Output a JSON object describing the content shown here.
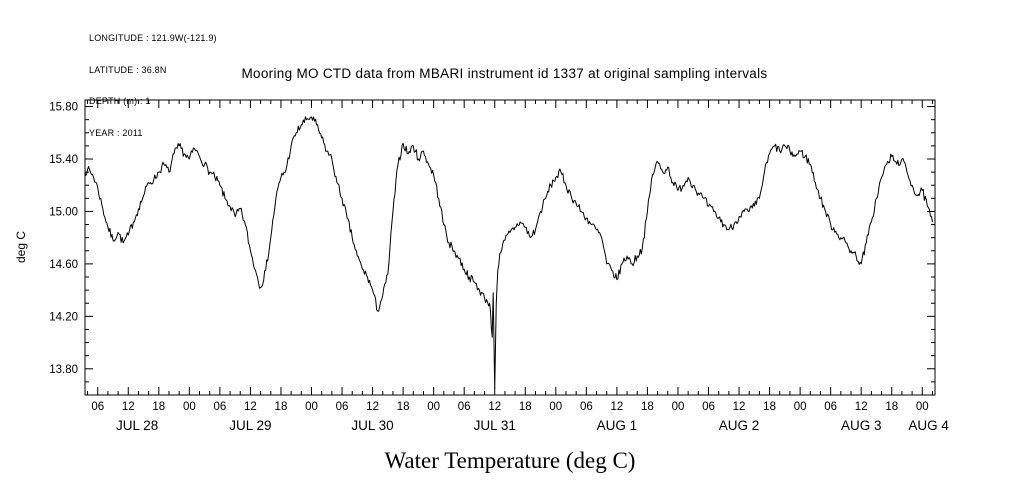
{
  "meta": {
    "longitude": "LONGITUDE : 121.9W(-121.9)",
    "latitude": "LATITUDE : 36.8N",
    "depth": "DEPTH (m) : 1",
    "year": "YEAR : 2011"
  },
  "title": "Mooring MO CTD data from MBARI instrument id 1337 at original sampling intervals",
  "chart_data": {
    "type": "line",
    "title": "Mooring MO CTD data from MBARI instrument id 1337 at original sampling intervals",
    "xlabel": "Water Temperature (deg C)",
    "ylabel": "deg C",
    "x_unit": "hours since 2011-07-28 00:00",
    "xlim": [
      3.5,
      170.5
    ],
    "ylim": [
      13.6,
      15.85
    ],
    "grid": false,
    "line_color": "#000000",
    "noise_amp": 0.032,
    "noise_seed": 7,
    "y_major_ticks": [
      13.8,
      14.2,
      14.6,
      15.0,
      15.4,
      15.8
    ],
    "y_tick_labels": [
      "13.80",
      "14.20",
      "14.60",
      "15.00",
      "15.40",
      "15.80"
    ],
    "y_minor_step": 0.1,
    "x_ticks": [
      6,
      12,
      18,
      24,
      30,
      36,
      42,
      48,
      54,
      60,
      66,
      72,
      78,
      84,
      90,
      96,
      102,
      108,
      114,
      120,
      126,
      132,
      138,
      144,
      150,
      156,
      162,
      168
    ],
    "x_tick_labels": [
      "06",
      "12",
      "18",
      "00",
      "06",
      "12",
      "18",
      "00",
      "06",
      "12",
      "18",
      "00",
      "06",
      "12",
      "18",
      "00",
      "06",
      "12",
      "18",
      "00",
      "06",
      "12",
      "18",
      "00",
      "06",
      "12",
      "18",
      "00"
    ],
    "x_minor_step": 2,
    "date_labels": [
      {
        "label": "JUL 28",
        "t": 13.75
      },
      {
        "label": "JUL 29",
        "t": 36
      },
      {
        "label": "JUL 30",
        "t": 60
      },
      {
        "label": "JUL 31",
        "t": 84
      },
      {
        "label": "AUG 1",
        "t": 108
      },
      {
        "label": "AUG 2",
        "t": 132
      },
      {
        "label": "AUG 3",
        "t": 156
      },
      {
        "label": "AUG 4",
        "t": 169.25
      }
    ],
    "points": [
      [
        3.5,
        15.3
      ],
      [
        4,
        15.32
      ],
      [
        5,
        15.28
      ],
      [
        6,
        15.18
      ],
      [
        7,
        15.02
      ],
      [
        8,
        14.88
      ],
      [
        9,
        14.78
      ],
      [
        10,
        14.84
      ],
      [
        11,
        14.76
      ],
      [
        12,
        14.82
      ],
      [
        13,
        14.92
      ],
      [
        14,
        15.02
      ],
      [
        15,
        15.12
      ],
      [
        16,
        15.22
      ],
      [
        17,
        15.24
      ],
      [
        18,
        15.3
      ],
      [
        19,
        15.36
      ],
      [
        20,
        15.3
      ],
      [
        21,
        15.44
      ],
      [
        22,
        15.5
      ],
      [
        23,
        15.44
      ],
      [
        24,
        15.4
      ],
      [
        25,
        15.48
      ],
      [
        26,
        15.42
      ],
      [
        27,
        15.36
      ],
      [
        28,
        15.3
      ],
      [
        29,
        15.26
      ],
      [
        30,
        15.2
      ],
      [
        31,
        15.1
      ],
      [
        32,
        15.04
      ],
      [
        33,
        14.96
      ],
      [
        34,
        15.02
      ],
      [
        35,
        14.9
      ],
      [
        36,
        14.7
      ],
      [
        37,
        14.55
      ],
      [
        38,
        14.42
      ],
      [
        39,
        14.55
      ],
      [
        40,
        14.8
      ],
      [
        41,
        15.1
      ],
      [
        42,
        15.26
      ],
      [
        43,
        15.32
      ],
      [
        44,
        15.5
      ],
      [
        45,
        15.6
      ],
      [
        46,
        15.66
      ],
      [
        47,
        15.7
      ],
      [
        48,
        15.72
      ],
      [
        49,
        15.66
      ],
      [
        50,
        15.56
      ],
      [
        51,
        15.46
      ],
      [
        52,
        15.4
      ],
      [
        53,
        15.22
      ],
      [
        54,
        15.1
      ],
      [
        55,
        14.95
      ],
      [
        56,
        14.8
      ],
      [
        57,
        14.66
      ],
      [
        58,
        14.56
      ],
      [
        59,
        14.5
      ],
      [
        60,
        14.4
      ],
      [
        61,
        14.24
      ],
      [
        62,
        14.36
      ],
      [
        63,
        14.52
      ],
      [
        64,
        15.0
      ],
      [
        65,
        15.36
      ],
      [
        66,
        15.52
      ],
      [
        67,
        15.44
      ],
      [
        68,
        15.5
      ],
      [
        69,
        15.4
      ],
      [
        70,
        15.46
      ],
      [
        71,
        15.36
      ],
      [
        72,
        15.28
      ],
      [
        73,
        15.1
      ],
      [
        74,
        14.9
      ],
      [
        75,
        14.76
      ],
      [
        76,
        14.7
      ],
      [
        77,
        14.64
      ],
      [
        78,
        14.56
      ],
      [
        79,
        14.5
      ],
      [
        80,
        14.46
      ],
      [
        81,
        14.4
      ],
      [
        82,
        14.34
      ],
      [
        83,
        14.3
      ],
      [
        83.5,
        14.04
      ],
      [
        83.7,
        14.38
      ],
      [
        84,
        13.65
      ],
      [
        84.3,
        14.3
      ],
      [
        84.6,
        14.55
      ],
      [
        85,
        14.68
      ],
      [
        86,
        14.78
      ],
      [
        87,
        14.84
      ],
      [
        88,
        14.88
      ],
      [
        89,
        14.92
      ],
      [
        90,
        14.88
      ],
      [
        91,
        14.8
      ],
      [
        92,
        14.86
      ],
      [
        93,
        15.0
      ],
      [
        94,
        15.1
      ],
      [
        95,
        15.2
      ],
      [
        96,
        15.26
      ],
      [
        97,
        15.3
      ],
      [
        98,
        15.2
      ],
      [
        99,
        15.12
      ],
      [
        100,
        15.06
      ],
      [
        101,
        15.0
      ],
      [
        102,
        14.95
      ],
      [
        103,
        14.9
      ],
      [
        104,
        14.86
      ],
      [
        105,
        14.8
      ],
      [
        106,
        14.6
      ],
      [
        107,
        14.55
      ],
      [
        108,
        14.48
      ],
      [
        109,
        14.6
      ],
      [
        110,
        14.66
      ],
      [
        111,
        14.6
      ],
      [
        112,
        14.66
      ],
      [
        113,
        14.72
      ],
      [
        114,
        15.0
      ],
      [
        115,
        15.28
      ],
      [
        116,
        15.38
      ],
      [
        117,
        15.3
      ],
      [
        118,
        15.34
      ],
      [
        119,
        15.22
      ],
      [
        120,
        15.16
      ],
      [
        121,
        15.2
      ],
      [
        122,
        15.26
      ],
      [
        123,
        15.2
      ],
      [
        124,
        15.14
      ],
      [
        125,
        15.1
      ],
      [
        126,
        15.04
      ],
      [
        127,
        15.0
      ],
      [
        128,
        14.95
      ],
      [
        129,
        14.9
      ],
      [
        130,
        14.86
      ],
      [
        131,
        14.9
      ],
      [
        132,
        14.96
      ],
      [
        133,
        15.0
      ],
      [
        134,
        15.0
      ],
      [
        135,
        15.04
      ],
      [
        136,
        15.1
      ],
      [
        137,
        15.3
      ],
      [
        138,
        15.44
      ],
      [
        139,
        15.5
      ],
      [
        140,
        15.46
      ],
      [
        141,
        15.5
      ],
      [
        142,
        15.46
      ],
      [
        143,
        15.42
      ],
      [
        144,
        15.46
      ],
      [
        145,
        15.42
      ],
      [
        146,
        15.36
      ],
      [
        147,
        15.22
      ],
      [
        148,
        15.1
      ],
      [
        149,
        15.0
      ],
      [
        150,
        14.9
      ],
      [
        151,
        14.85
      ],
      [
        152,
        14.8
      ],
      [
        153,
        14.76
      ],
      [
        154,
        14.7
      ],
      [
        155,
        14.66
      ],
      [
        156,
        14.6
      ],
      [
        157,
        14.76
      ],
      [
        158,
        14.92
      ],
      [
        159,
        15.1
      ],
      [
        160,
        15.26
      ],
      [
        161,
        15.36
      ],
      [
        162,
        15.42
      ],
      [
        163,
        15.36
      ],
      [
        164,
        15.4
      ],
      [
        165,
        15.3
      ],
      [
        166,
        15.2
      ],
      [
        167,
        15.12
      ],
      [
        168,
        15.16
      ],
      [
        169,
        15.04
      ],
      [
        170,
        14.92
      ]
    ]
  }
}
